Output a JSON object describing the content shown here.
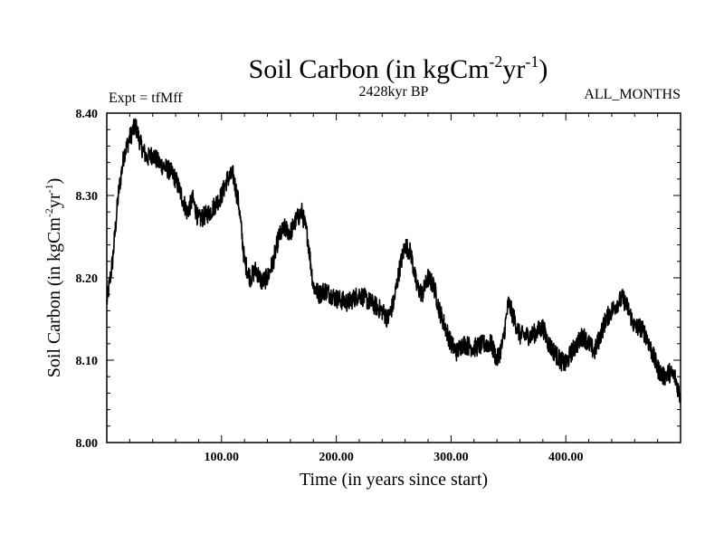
{
  "chart_data": {
    "type": "line",
    "title_main": "Soil Carbon (in kgCm",
    "title_sup1": "-2",
    "title_mid": "yr",
    "title_sup2": "-1",
    "title_end": ")",
    "subtitle_left": "Expt = tfMff",
    "subtitle_center": "2428kyr BP",
    "subtitle_right": "ALL_MONTHS",
    "xlabel": "Time (in years since start)",
    "ylabel_main": "Soil Carbon (in kgCm",
    "ylabel_sup1": "-2",
    "ylabel_mid": "yr",
    "ylabel_sup2": "-1",
    "ylabel_end": ")",
    "xlim": [
      0,
      500
    ],
    "ylim": [
      8.0,
      8.4
    ],
    "xticks": [
      {
        "value": 100,
        "label": "100.00"
      },
      {
        "value": 200,
        "label": "200.00"
      },
      {
        "value": 300,
        "label": "300.00"
      },
      {
        "value": 400,
        "label": "400.00"
      }
    ],
    "yticks": [
      {
        "value": 8.0,
        "label": "8.00"
      },
      {
        "value": 8.1,
        "label": "8.10"
      },
      {
        "value": 8.2,
        "label": "8.20"
      },
      {
        "value": 8.3,
        "label": "8.30"
      },
      {
        "value": 8.4,
        "label": "8.40"
      }
    ],
    "line_color": "#000000",
    "series": [
      {
        "name": "Soil Carbon",
        "anchors": [
          [
            0,
            8.17
          ],
          [
            5,
            8.22
          ],
          [
            10,
            8.3
          ],
          [
            15,
            8.35
          ],
          [
            20,
            8.37
          ],
          [
            25,
            8.385
          ],
          [
            30,
            8.36
          ],
          [
            35,
            8.345
          ],
          [
            40,
            8.35
          ],
          [
            45,
            8.34
          ],
          [
            50,
            8.335
          ],
          [
            55,
            8.33
          ],
          [
            60,
            8.32
          ],
          [
            65,
            8.3
          ],
          [
            70,
            8.28
          ],
          [
            75,
            8.295
          ],
          [
            80,
            8.27
          ],
          [
            85,
            8.275
          ],
          [
            90,
            8.28
          ],
          [
            95,
            8.29
          ],
          [
            100,
            8.3
          ],
          [
            105,
            8.32
          ],
          [
            110,
            8.325
          ],
          [
            115,
            8.29
          ],
          [
            120,
            8.22
          ],
          [
            125,
            8.2
          ],
          [
            130,
            8.21
          ],
          [
            135,
            8.195
          ],
          [
            140,
            8.2
          ],
          [
            145,
            8.22
          ],
          [
            150,
            8.25
          ],
          [
            155,
            8.26
          ],
          [
            160,
            8.255
          ],
          [
            165,
            8.27
          ],
          [
            170,
            8.28
          ],
          [
            175,
            8.25
          ],
          [
            180,
            8.19
          ],
          [
            185,
            8.18
          ],
          [
            190,
            8.185
          ],
          [
            195,
            8.18
          ],
          [
            200,
            8.175
          ],
          [
            210,
            8.17
          ],
          [
            220,
            8.18
          ],
          [
            230,
            8.17
          ],
          [
            240,
            8.16
          ],
          [
            245,
            8.15
          ],
          [
            250,
            8.17
          ],
          [
            255,
            8.21
          ],
          [
            260,
            8.24
          ],
          [
            265,
            8.23
          ],
          [
            270,
            8.19
          ],
          [
            275,
            8.18
          ],
          [
            280,
            8.2
          ],
          [
            285,
            8.19
          ],
          [
            290,
            8.16
          ],
          [
            295,
            8.14
          ],
          [
            300,
            8.12
          ],
          [
            305,
            8.11
          ],
          [
            310,
            8.12
          ],
          [
            320,
            8.115
          ],
          [
            330,
            8.12
          ],
          [
            335,
            8.12
          ],
          [
            340,
            8.1
          ],
          [
            345,
            8.12
          ],
          [
            350,
            8.17
          ],
          [
            355,
            8.15
          ],
          [
            360,
            8.13
          ],
          [
            370,
            8.13
          ],
          [
            380,
            8.14
          ],
          [
            385,
            8.12
          ],
          [
            390,
            8.11
          ],
          [
            395,
            8.1
          ],
          [
            400,
            8.095
          ],
          [
            405,
            8.11
          ],
          [
            410,
            8.12
          ],
          [
            415,
            8.13
          ],
          [
            420,
            8.12
          ],
          [
            425,
            8.11
          ],
          [
            430,
            8.13
          ],
          [
            435,
            8.15
          ],
          [
            440,
            8.16
          ],
          [
            445,
            8.17
          ],
          [
            450,
            8.175
          ],
          [
            455,
            8.16
          ],
          [
            460,
            8.14
          ],
          [
            465,
            8.14
          ],
          [
            470,
            8.13
          ],
          [
            475,
            8.11
          ],
          [
            480,
            8.09
          ],
          [
            485,
            8.08
          ],
          [
            490,
            8.085
          ],
          [
            495,
            8.08
          ],
          [
            500,
            8.055
          ]
        ]
      }
    ]
  }
}
